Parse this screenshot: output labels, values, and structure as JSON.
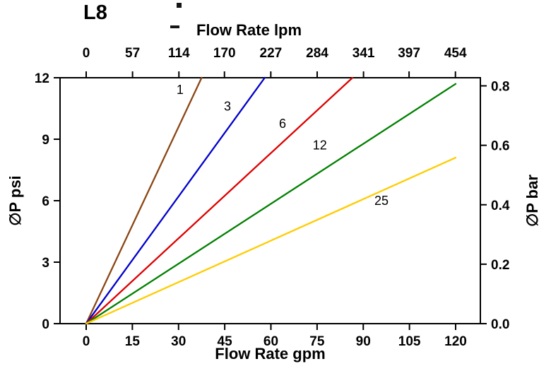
{
  "chart_data": {
    "type": "line",
    "title": "L8",
    "top_axis": {
      "label": "Flow Rate lpm",
      "ticks": [
        0,
        57,
        114,
        170,
        227,
        284,
        341,
        397,
        454
      ]
    },
    "bottom_axis": {
      "label": "Flow Rate gpm",
      "ticks": [
        0,
        15,
        30,
        45,
        60,
        75,
        90,
        105,
        120
      ],
      "range": [
        0,
        120
      ]
    },
    "left_axis": {
      "label": "∅P psi",
      "ticks": [
        0,
        3,
        6,
        9,
        12
      ],
      "range": [
        0,
        12
      ]
    },
    "right_axis": {
      "label": "∅P bar",
      "ticks": [
        "0.0",
        "0.2",
        "0.4",
        "0.6",
        "0.8"
      ]
    },
    "lpm_per_gpm": 3.78541,
    "psi_per_bar": 14.5038,
    "grid": false,
    "legend": "inline-labels",
    "series": [
      {
        "name": "1",
        "color": "#8B4513",
        "points": [
          [
            0,
            0
          ],
          [
            37.5,
            12
          ]
        ],
        "label_pos": [
          30.5,
          11.2
        ]
      },
      {
        "name": "3",
        "color": "#0000CC",
        "points": [
          [
            0,
            0
          ],
          [
            58,
            12
          ]
        ],
        "label_pos": [
          45.9,
          10.4
        ]
      },
      {
        "name": "6",
        "color": "#DD0000",
        "points": [
          [
            0,
            0
          ],
          [
            86.5,
            12
          ]
        ],
        "label_pos": [
          63.8,
          9.55
        ]
      },
      {
        "name": "12",
        "color": "#008000",
        "points": [
          [
            0,
            0
          ],
          [
            120,
            11.7
          ]
        ],
        "label_pos": [
          75.9,
          8.5
        ]
      },
      {
        "name": "25",
        "color": "#FFCC00",
        "points": [
          [
            0,
            0
          ],
          [
            120,
            8.1
          ]
        ],
        "label_pos": [
          95.9,
          5.8
        ]
      }
    ]
  }
}
